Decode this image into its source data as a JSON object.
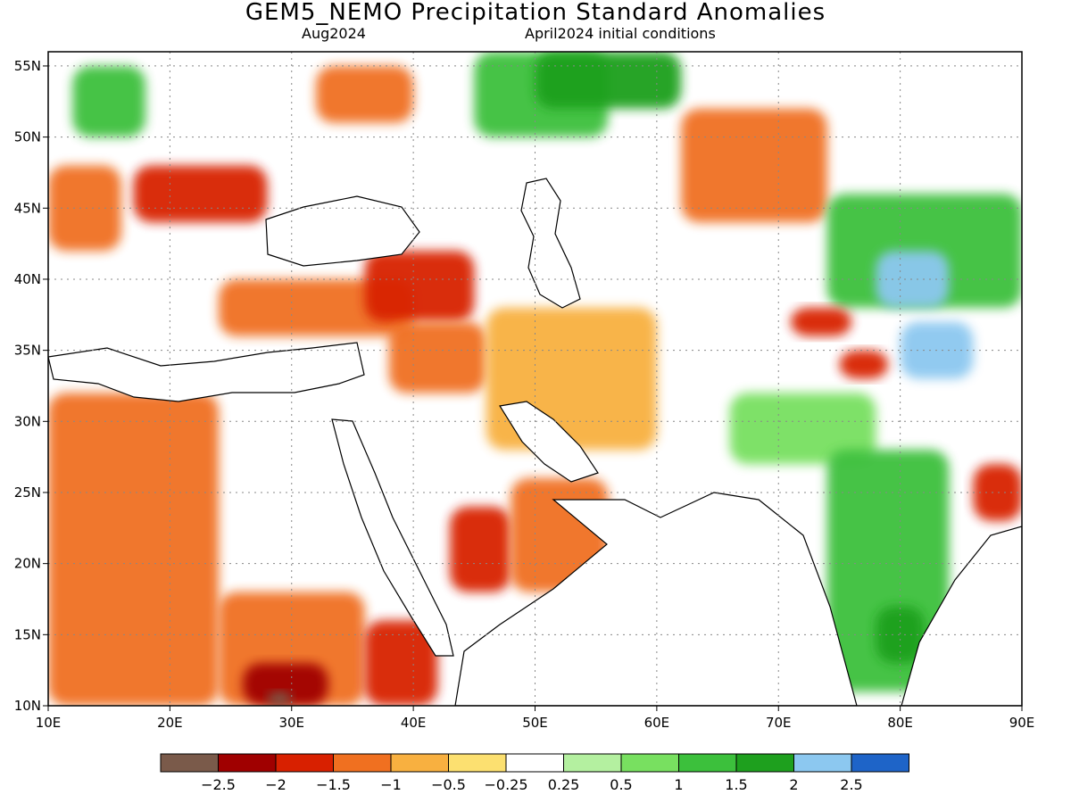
{
  "header": {
    "title": "GEM5_NEMO Precipitation Standard Anomalies",
    "valid_month": "Aug2024",
    "initial_conditions": "April2024 initial conditions"
  },
  "map": {
    "lon_ticks": [
      "10E",
      "20E",
      "30E",
      "40E",
      "50E",
      "60E",
      "70E",
      "80E",
      "90E"
    ],
    "lat_ticks": [
      "55N",
      "50N",
      "45N",
      "40N",
      "35N",
      "30N",
      "25N",
      "20N",
      "15N",
      "10N"
    ],
    "lon_range": [
      10,
      90
    ],
    "lat_range": [
      10,
      56
    ],
    "gridlines": "dotted"
  },
  "colorbar": {
    "colors": [
      "#7a5a4a",
      "#a00000",
      "#d82000",
      "#f07020",
      "#f8b040",
      "#fce070",
      "#ffffff",
      "#b4f0a0",
      "#78e060",
      "#3cc03c",
      "#1ea01e",
      "#8cc8f0",
      "#1e64c8"
    ],
    "labels": [
      "−2.5",
      "−2",
      "−1.5",
      "−1",
      "−0.5",
      "−0.25",
      "0.25",
      "0.5",
      "1",
      "1.5",
      "2",
      "2.5"
    ]
  },
  "chart_data": {
    "type": "heatmap",
    "title": "GEM5_NEMO Precipitation Standard Anomalies",
    "subtitle": "Aug2024",
    "note": "April2024 initial conditions",
    "xlabel": "",
    "ylabel": "",
    "xlim": [
      10,
      90
    ],
    "ylim": [
      10,
      56
    ],
    "levels": [
      -2.5,
      -2,
      -1.5,
      -1,
      -0.5,
      -0.25,
      0.25,
      0.5,
      1,
      1.5,
      2,
      2.5
    ],
    "regions": [
      {
        "lon": [
          10,
          16
        ],
        "lat": [
          42,
          48
        ],
        "value": -1.2
      },
      {
        "lon": [
          17,
          28
        ],
        "lat": [
          44,
          48
        ],
        "value": -1.8
      },
      {
        "lon": [
          12,
          18
        ],
        "lat": [
          50,
          55
        ],
        "value": 1.2
      },
      {
        "lon": [
          32,
          40
        ],
        "lat": [
          51,
          55
        ],
        "value": -1.3
      },
      {
        "lon": [
          45,
          56
        ],
        "lat": [
          50,
          56
        ],
        "value": 1.2
      },
      {
        "lon": [
          50,
          62
        ],
        "lat": [
          52,
          56
        ],
        "value": 1.6
      },
      {
        "lon": [
          62,
          74
        ],
        "lat": [
          44,
          52
        ],
        "value": -1.0
      },
      {
        "lon": [
          74,
          90
        ],
        "lat": [
          38,
          46
        ],
        "value": 1.5
      },
      {
        "lon": [
          78,
          84
        ],
        "lat": [
          38,
          42
        ],
        "value": 2.2
      },
      {
        "lon": [
          80,
          86
        ],
        "lat": [
          33,
          37
        ],
        "value": 2.4
      },
      {
        "lon": [
          24,
          40
        ],
        "lat": [
          36,
          40
        ],
        "value": -1.0
      },
      {
        "lon": [
          36,
          45
        ],
        "lat": [
          37,
          42
        ],
        "value": -1.8
      },
      {
        "lon": [
          38,
          46
        ],
        "lat": [
          32,
          37
        ],
        "value": -1.1
      },
      {
        "lon": [
          46,
          60
        ],
        "lat": [
          28,
          38
        ],
        "value": -0.6
      },
      {
        "lon": [
          10,
          24
        ],
        "lat": [
          10,
          32
        ],
        "value": -1.0
      },
      {
        "lon": [
          24,
          36
        ],
        "lat": [
          10,
          18
        ],
        "value": -1.2
      },
      {
        "lon": [
          26,
          33
        ],
        "lat": [
          10,
          13
        ],
        "value": -2.0
      },
      {
        "lon": [
          28,
          30
        ],
        "lat": [
          10,
          11
        ],
        "value": -2.7
      },
      {
        "lon": [
          36,
          42
        ],
        "lat": [
          10,
          16
        ],
        "value": -1.8
      },
      {
        "lon": [
          43,
          48
        ],
        "lat": [
          18,
          24
        ],
        "value": -1.7
      },
      {
        "lon": [
          48,
          56
        ],
        "lat": [
          18,
          26
        ],
        "value": -1.0
      },
      {
        "lon": [
          66,
          78
        ],
        "lat": [
          27,
          32
        ],
        "value": 1.0
      },
      {
        "lon": [
          71,
          76
        ],
        "lat": [
          36,
          38
        ],
        "value": -1.8
      },
      {
        "lon": [
          75,
          79
        ],
        "lat": [
          33,
          35
        ],
        "value": -1.8
      },
      {
        "lon": [
          74,
          84
        ],
        "lat": [
          11,
          28
        ],
        "value": 1.4
      },
      {
        "lon": [
          78,
          82
        ],
        "lat": [
          13,
          17
        ],
        "value": 2.0
      },
      {
        "lon": [
          86,
          90
        ],
        "lat": [
          23,
          27
        ],
        "value": -1.6
      }
    ]
  }
}
